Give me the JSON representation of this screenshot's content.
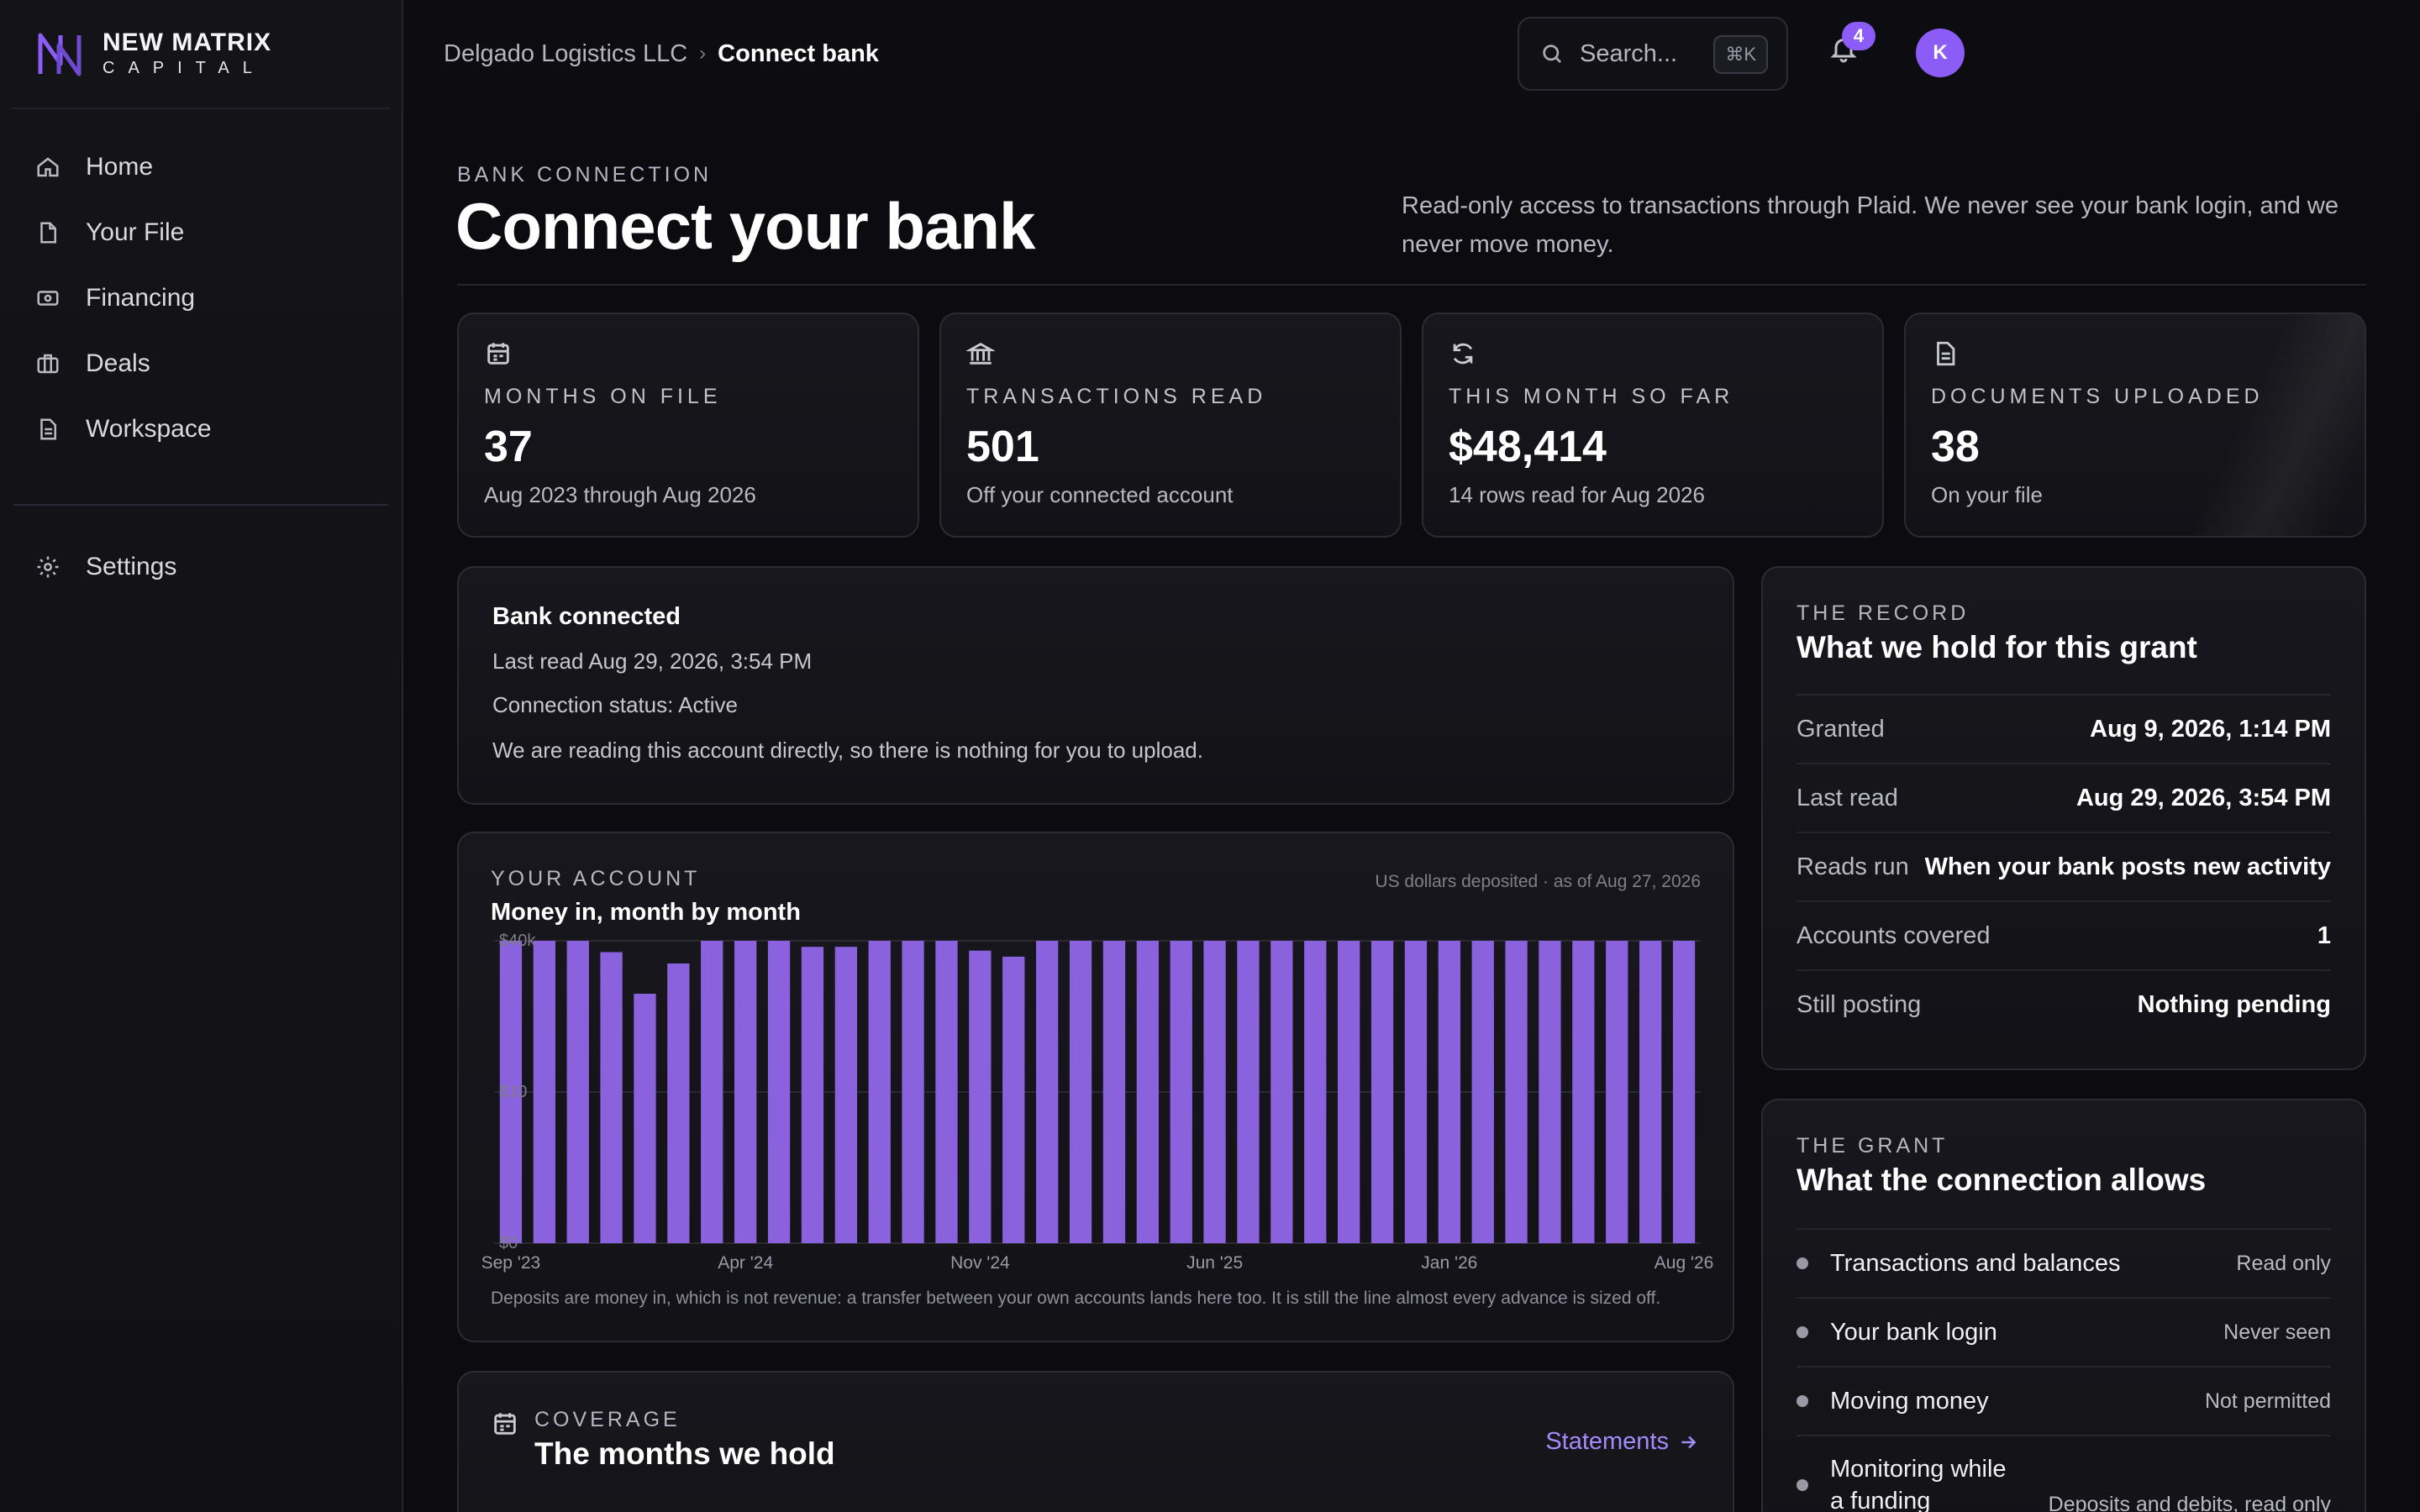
{
  "brand": {
    "name": "NEW MATRIX",
    "sub": "CAPITAL",
    "accent": "#8b5cf6"
  },
  "sidebar": {
    "items": [
      {
        "label": "Home",
        "icon": "home-icon"
      },
      {
        "label": "Your File",
        "icon": "file-icon"
      },
      {
        "label": "Financing",
        "icon": "cash-icon"
      },
      {
        "label": "Deals",
        "icon": "briefcase-icon"
      },
      {
        "label": "Workspace",
        "icon": "document-icon"
      }
    ],
    "settings": {
      "label": "Settings",
      "icon": "gear-icon"
    }
  },
  "topbar": {
    "breadcrumb": [
      "Delgado Logistics LLC",
      "Connect bank"
    ],
    "search_placeholder": "Search...",
    "search_shortcut": "⌘K",
    "notifications": "4",
    "avatar_initial": "K"
  },
  "header": {
    "eyebrow": "BANK CONNECTION",
    "title": "Connect your bank",
    "description": "Read-only access to transactions through Plaid. We never see your bank login, and we never move money."
  },
  "stats": [
    {
      "icon": "calendar-icon",
      "label": "MONTHS ON FILE",
      "value": "37",
      "sub": "Aug 2023 through Aug 2026"
    },
    {
      "icon": "bank-icon",
      "label": "TRANSACTIONS READ",
      "value": "501",
      "sub": "Off your connected account"
    },
    {
      "icon": "refresh-icon",
      "label": "THIS MONTH SO FAR",
      "value": "$48,414",
      "sub": "14 rows read for Aug 2026"
    },
    {
      "icon": "document-icon",
      "label": "DOCUMENTS UPLOADED",
      "value": "38",
      "sub": "On your file"
    }
  ],
  "connection": {
    "title": "Bank connected",
    "last_read": "Last read Aug 29, 2026, 3:54 PM",
    "status": "Connection status: Active",
    "note": "We are reading this account directly, so there is nothing for you to upload."
  },
  "chart": {
    "eyebrow": "YOUR ACCOUNT",
    "title": "Money in, month by month",
    "meta": "US dollars deposited · as of Aug 27, 2026",
    "footnote": "Deposits are money in, which is not revenue: a transfer between your own accounts lands here too. It is still the line almost every advance is sized off."
  },
  "chart_data": {
    "type": "bar",
    "x_tick_labels": [
      "Sep '23",
      "Apr '24",
      "Nov '24",
      "Jun '25",
      "Jan '26",
      "Aug '26"
    ],
    "x_tick_indices": [
      0,
      7,
      14,
      21,
      28,
      35
    ],
    "y_tick_labels": [
      "$40k",
      "$10",
      "$0"
    ],
    "ylim": [
      0,
      40000
    ],
    "color": "#8b62dd",
    "categories": [
      "Sep '23",
      "Oct '23",
      "Nov '23",
      "Dec '23",
      "Jan '24",
      "Feb '24",
      "Mar '24",
      "Apr '24",
      "May '24",
      "Jun '24",
      "Jul '24",
      "Aug '24",
      "Sep '24",
      "Oct '24",
      "Nov '24",
      "Dec '24",
      "Jan '25",
      "Feb '25",
      "Mar '25",
      "Apr '25",
      "May '25",
      "Jun '25",
      "Jul '25",
      "Aug '25",
      "Sep '25",
      "Oct '25",
      "Nov '25",
      "Dec '25",
      "Jan '26",
      "Feb '26",
      "Mar '26",
      "Apr '26",
      "May '26",
      "Jun '26",
      "Jul '26",
      "Aug '26"
    ],
    "values": [
      40000,
      40000,
      40000,
      38500,
      33000,
      37000,
      40000,
      40000,
      40000,
      39200,
      39200,
      40000,
      40000,
      40000,
      38700,
      37900,
      40000,
      40000,
      40000,
      40000,
      40000,
      40000,
      40000,
      40000,
      40000,
      40000,
      40000,
      40000,
      40000,
      40000,
      40000,
      40000,
      40000,
      40000,
      40000,
      40000
    ]
  },
  "coverage": {
    "eyebrow": "COVERAGE",
    "title": "The months we hold",
    "link": "Statements"
  },
  "record": {
    "eyebrow": "THE RECORD",
    "title": "What we hold for this grant",
    "rows": [
      {
        "k": "Granted",
        "v": "Aug 9, 2026, 1:14 PM"
      },
      {
        "k": "Last read",
        "v": "Aug 29, 2026, 3:54 PM"
      },
      {
        "k": "Reads run",
        "v": "When your bank posts new activity"
      },
      {
        "k": "Accounts covered",
        "v": "1"
      },
      {
        "k": "Still posting",
        "v": "Nothing pending"
      }
    ]
  },
  "grant": {
    "eyebrow": "THE GRANT",
    "title": "What the connection allows",
    "rows": [
      {
        "label": "Transactions and balances",
        "value": "Read only"
      },
      {
        "label": "Your bank login",
        "value": "Never seen"
      },
      {
        "label": "Moving money",
        "value": "Not permitted"
      },
      {
        "label": "Monitoring while a funding",
        "value": "Deposits and debits, read only"
      }
    ]
  }
}
